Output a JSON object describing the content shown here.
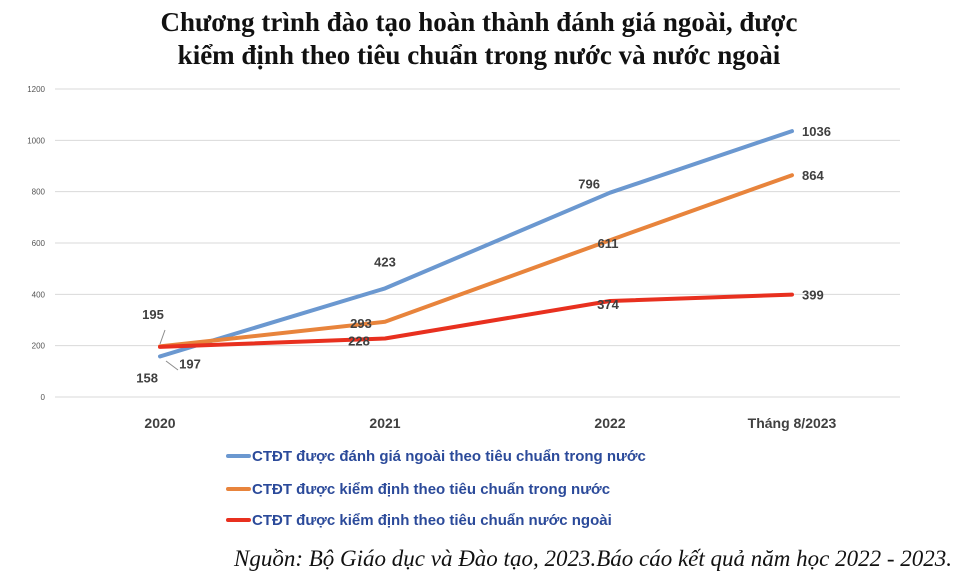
{
  "title_line1": "Chương trình đào tạo hoàn thành đánh giá ngoài, được",
  "title_line2": "kiểm định theo tiêu chuẩn trong nước và nước ngoài",
  "source": "Nguồn: Bộ Giáo dục và Đào tạo, 2023.Báo cáo kết quả năm học 2022 - 2023.",
  "colors": {
    "series1": "#6b98d0",
    "series2": "#e8843c",
    "series3": "#e8301f",
    "grid": "#d9d9d9"
  },
  "chart_data": {
    "type": "line",
    "title": "Chương trình đào tạo hoàn thành đánh giá ngoài, được kiểm định theo tiêu chuẩn trong nước và nước ngoài",
    "xlabel": "",
    "ylabel": "",
    "categories": [
      "2020",
      "2021",
      "2022",
      "Tháng 8/2023"
    ],
    "ylim": [
      0,
      1200
    ],
    "yticks": [
      0,
      200,
      400,
      600,
      800,
      1000,
      1200
    ],
    "grid": true,
    "legend_position": "bottom",
    "series": [
      {
        "name": "CTĐT được đánh giá ngoài theo tiêu chuẩn trong nước",
        "values": [
          158,
          423,
          796,
          1036
        ],
        "color": "#6b98d0"
      },
      {
        "name": "CTĐT được kiểm định theo tiêu chuẩn trong nước",
        "values": [
          197,
          293,
          611,
          864
        ],
        "color": "#e8843c"
      },
      {
        "name": "CTĐT được kiểm định theo tiêu chuẩn nước ngoài",
        "values": [
          195,
          228,
          374,
          399
        ],
        "color": "#e8301f"
      }
    ]
  }
}
